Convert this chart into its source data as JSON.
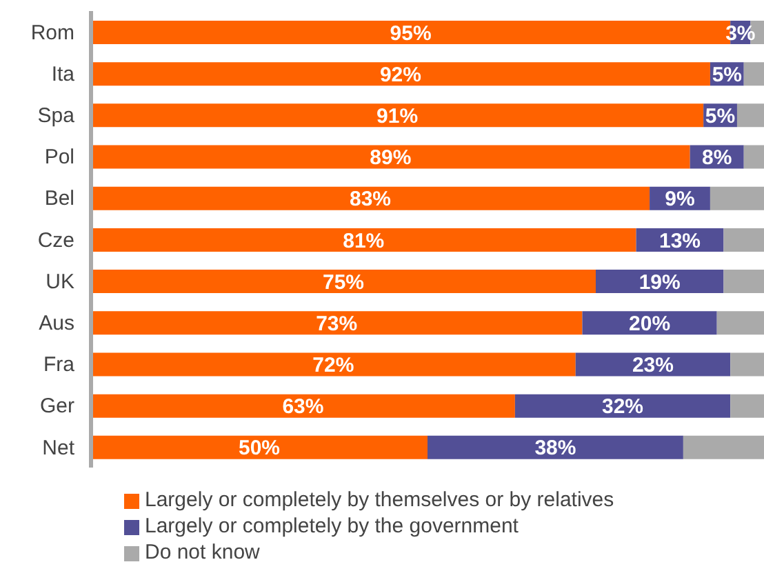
{
  "chart_data": {
    "type": "bar",
    "orientation": "horizontal",
    "stacked": true,
    "categories": [
      "Rom",
      "Ita",
      "Spa",
      "Pol",
      "Bel",
      "Cze",
      "UK",
      "Aus",
      "Fra",
      "Ger",
      "Net"
    ],
    "series": [
      {
        "name": "Largely or completely by themselves or by relatives",
        "color": "#ff6200",
        "values": [
          95,
          92,
          91,
          89,
          83,
          81,
          75,
          73,
          72,
          63,
          50
        ],
        "value_labels": [
          "95%",
          "92%",
          "91%",
          "89%",
          "83%",
          "81%",
          "75%",
          "73%",
          "72%",
          "63%",
          "50%"
        ]
      },
      {
        "name": "Largely or completely by the government",
        "color": "#524f96",
        "values": [
          3,
          5,
          5,
          8,
          9,
          13,
          19,
          20,
          23,
          32,
          38
        ],
        "value_labels": [
          "3%",
          "5%",
          "5%",
          "8%",
          "9%",
          "13%",
          "19%",
          "20%",
          "23%",
          "32%",
          "38%"
        ]
      },
      {
        "name": "Do not know",
        "color": "#aaaaaa",
        "values": [
          2,
          3,
          4,
          3,
          8,
          6,
          6,
          7,
          5,
          5,
          12
        ]
      }
    ],
    "xlim": [
      0,
      100
    ],
    "tick_labels": "y",
    "legend": "bottom",
    "grid": false
  }
}
